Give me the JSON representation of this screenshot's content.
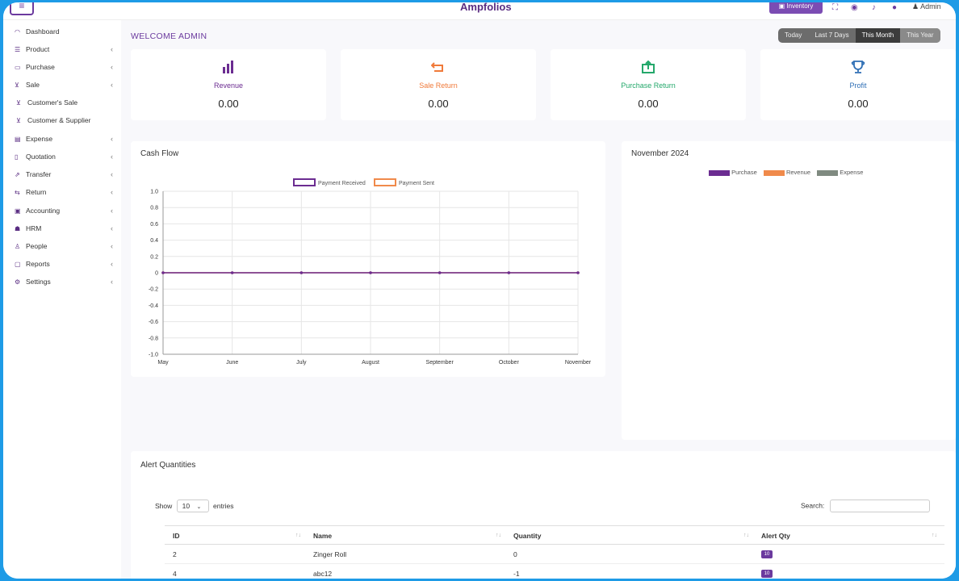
{
  "topbar": {
    "brand": "Ampfolios",
    "inventory_label": "Inventory",
    "admin_label": "Admin"
  },
  "sidebar": {
    "items": [
      {
        "label": "Dashboard",
        "icon": "dashboard-icon",
        "chevron": false
      },
      {
        "label": "Product",
        "icon": "list-icon",
        "chevron": true
      },
      {
        "label": "Purchase",
        "icon": "card-icon",
        "chevron": true
      },
      {
        "label": "Sale",
        "icon": "cart-icon",
        "chevron": true
      },
      {
        "label": "Customer's Sale",
        "icon": "cart-icon",
        "chevron": false
      },
      {
        "label": "Customer & Supplier",
        "icon": "cart-icon",
        "chevron": false
      },
      {
        "label": "Expense",
        "icon": "wallet-icon",
        "chevron": true
      },
      {
        "label": "Quotation",
        "icon": "document-icon",
        "chevron": true
      },
      {
        "label": "Transfer",
        "icon": "transfer-icon",
        "chevron": true
      },
      {
        "label": "Return",
        "icon": "return-icon",
        "chevron": true
      },
      {
        "label": "Accounting",
        "icon": "briefcase-icon",
        "chevron": true
      },
      {
        "label": "HRM",
        "icon": "users-icon",
        "chevron": true
      },
      {
        "label": "People",
        "icon": "user-icon",
        "chevron": true
      },
      {
        "label": "Reports",
        "icon": "file-icon",
        "chevron": true
      },
      {
        "label": "Settings",
        "icon": "gear-icon",
        "chevron": true
      }
    ]
  },
  "main": {
    "welcome": "WELCOME ADMIN",
    "ranges": [
      "Today",
      "Last 7 Days",
      "This Month",
      "This Year"
    ],
    "cards": [
      {
        "label": "Revenue",
        "value": "0.00",
        "color": "#6b2c91",
        "icon": "bar-chart-icon"
      },
      {
        "label": "Sale Return",
        "value": "0.00",
        "color": "#f07a3a",
        "icon": "return-icon"
      },
      {
        "label": "Purchase Return",
        "value": "0.00",
        "color": "#24a86b",
        "icon": "purchase-return-icon"
      },
      {
        "label": "Profit",
        "value": "0.00",
        "color": "#2f6fb5",
        "icon": "trophy-icon"
      }
    ],
    "cashflow_title": "Cash Flow",
    "month_title": "November 2024",
    "month_legend": [
      {
        "label": "Purchase",
        "color": "#6b2c91"
      },
      {
        "label": "Revenue",
        "color": "#f08a4b"
      },
      {
        "label": "Expense",
        "color": "#7f8a80"
      }
    ],
    "alert": {
      "title": "Alert Quantities",
      "show_label": "Show",
      "entries_value": "10",
      "entries_label": "entries",
      "search_label": "Search:",
      "headers": [
        "ID",
        "Name",
        "Quantity",
        "Alert Qty"
      ],
      "rows": [
        {
          "id": "2",
          "name": "Zinger Roll",
          "qty": "0",
          "alert": "10"
        },
        {
          "id": "4",
          "name": "abc12",
          "qty": "-1",
          "alert": "10"
        }
      ]
    }
  },
  "chart_data": {
    "type": "line",
    "title": "Cash Flow",
    "categories": [
      "May",
      "June",
      "July",
      "August",
      "September",
      "October",
      "November"
    ],
    "series": [
      {
        "name": "Payment Received",
        "values": [
          0,
          0,
          0,
          0,
          0,
          0,
          0
        ],
        "color": "#6b2c91"
      },
      {
        "name": "Payment Sent",
        "values": [
          0,
          0,
          0,
          0,
          0,
          0,
          0
        ],
        "color": "#f08a4b"
      }
    ],
    "ylim": [
      -1.0,
      1.0
    ],
    "yticks": [
      "1.0",
      "0.8",
      "0.6",
      "0.4",
      "0.2",
      "0",
      "-0.2",
      "-0.4",
      "-0.6",
      "-0.8",
      "-1.0"
    ],
    "grid": true,
    "legend": "top-center"
  }
}
